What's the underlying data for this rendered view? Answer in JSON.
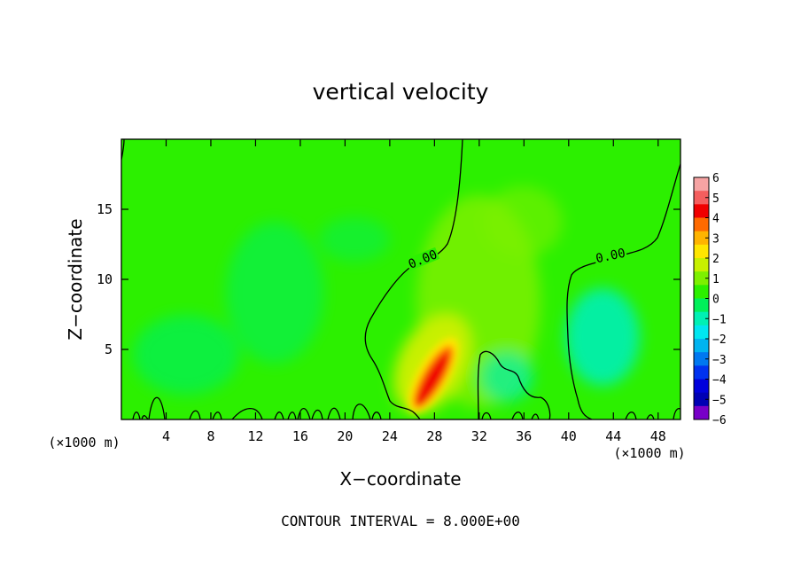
{
  "chart_data": {
    "type": "heatmap",
    "title": "vertical velocity",
    "xlabel": "X−coordinate",
    "ylabel": "Z−coordinate",
    "x_unit_left": "(×1000 m)",
    "x_unit_right": "(×1000 m)",
    "footer": "CONTOUR INTERVAL = 8.000E+00",
    "xlim": [
      0,
      50
    ],
    "ylim": [
      0,
      20
    ],
    "x_ticks": [
      4,
      8,
      12,
      16,
      20,
      24,
      28,
      32,
      36,
      40,
      44,
      48
    ],
    "y_ticks": [
      5,
      10,
      15
    ],
    "colorbar": {
      "range": [
        -6,
        6
      ],
      "ticks": [
        "6",
        "5",
        "4",
        "3",
        "2",
        "1",
        "0",
        "−1",
        "−2",
        "−3",
        "−4",
        "−5",
        "−6"
      ],
      "colors": [
        "#f6a3a3",
        "#f55e5e",
        "#f00000",
        "#ff6a00",
        "#ffb400",
        "#ffe600",
        "#c8f000",
        "#7df000",
        "#2cf000",
        "#00f05a",
        "#00f0b4",
        "#00e6f0",
        "#00b4f0",
        "#0078f0",
        "#0032f0",
        "#0000dc",
        "#0000b4",
        "#7800c8"
      ]
    },
    "contour_labels": [
      {
        "text": "0.00",
        "x": 27,
        "y": 11.3
      },
      {
        "text": "0.00",
        "x": 44,
        "y": 11.6
      }
    ],
    "features": [
      {
        "kind": "updraft_core",
        "x": 28.2,
        "y": 2.6,
        "max": 6
      },
      {
        "kind": "weak_updraft",
        "x": 31,
        "y": 8,
        "value": 0.8
      },
      {
        "kind": "downdraft",
        "x": 43,
        "y": 4.8,
        "value": -1.8
      },
      {
        "kind": "downdraft",
        "x": 36,
        "y": 3.5,
        "value": -1.0
      }
    ]
  }
}
